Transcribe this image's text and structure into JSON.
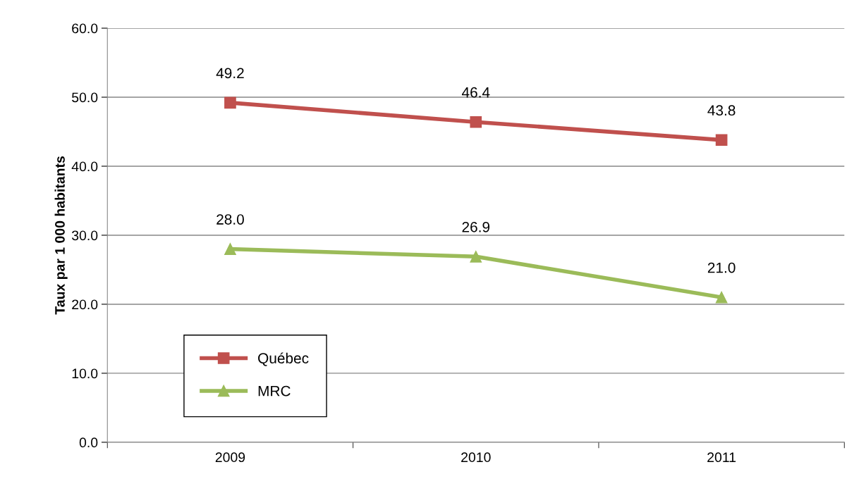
{
  "chart_data": {
    "type": "line",
    "ylabel": "Taux par 1 000 habitants",
    "categories": [
      "2009",
      "2010",
      "2011"
    ],
    "series": [
      {
        "name": "Québec",
        "color": "#c0504d",
        "values": [
          49.2,
          46.4,
          43.8
        ],
        "marker": "square",
        "value_labels": [
          "49.2",
          "46.4",
          "43.8"
        ]
      },
      {
        "name": "MRC",
        "color": "#9bbb59",
        "values": [
          28.0,
          26.9,
          21.0
        ],
        "marker": "triangle",
        "value_labels": [
          "28.0",
          "26.9",
          "21.0"
        ]
      }
    ],
    "ylim": [
      0,
      60
    ],
    "yticks": [
      {
        "value": 0,
        "label": "0.0"
      },
      {
        "value": 10,
        "label": "10.0"
      },
      {
        "value": 20,
        "label": "20.0"
      },
      {
        "value": 30,
        "label": "30.0"
      },
      {
        "value": 40,
        "label": "40.0"
      },
      {
        "value": 50,
        "label": "50.0"
      },
      {
        "value": 60,
        "label": "60.0"
      }
    ],
    "grid": "y",
    "legend": "bottom left",
    "line_style": "solid"
  }
}
